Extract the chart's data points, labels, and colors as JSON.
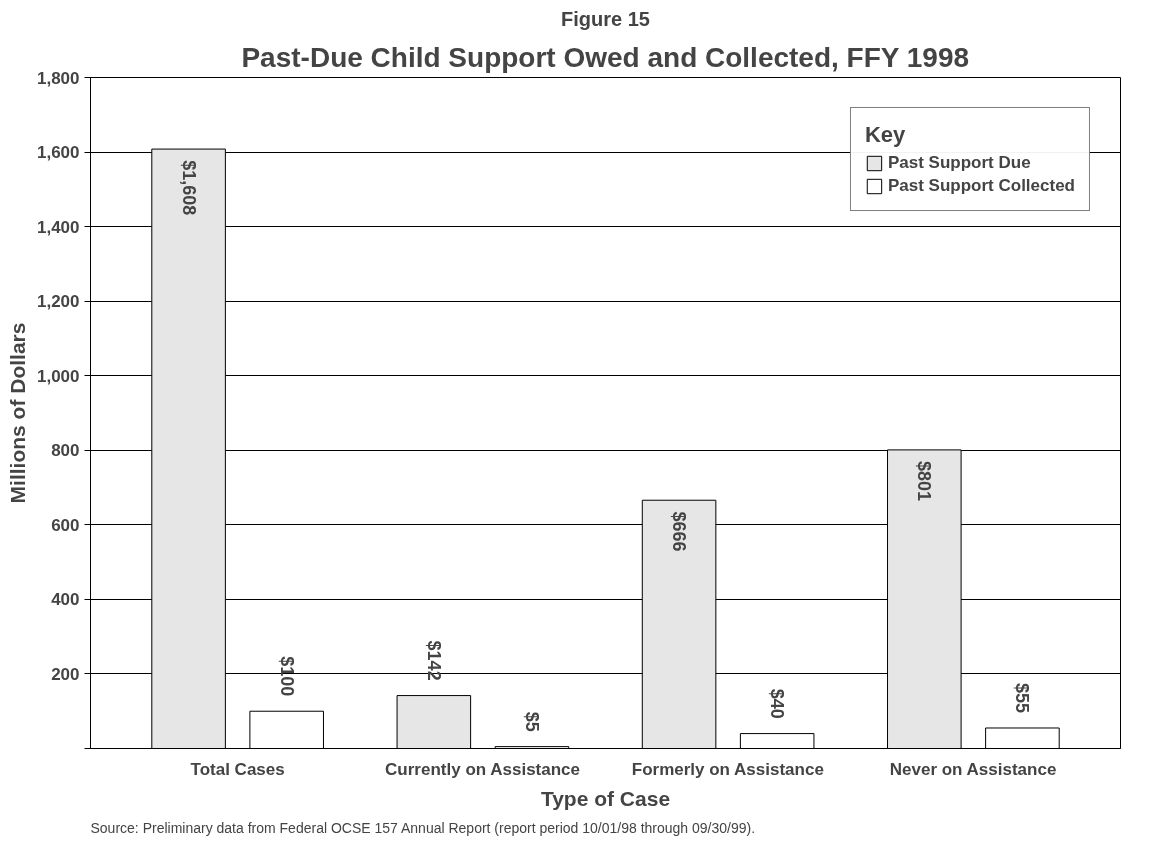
{
  "chart_data": {
    "type": "bar",
    "title": "Past-Due Child Support Owed and Collected, FFY 1998",
    "xlabel": "Type of Case",
    "ylabel": "Millions of Dollars",
    "legend_title": "Key",
    "annotations": [
      "Figure 15",
      "Source:  Preliminary data from Federal OCSE 157 Annual Report (report period 10/01/98 through 09/30/99)."
    ],
    "categories": [
      "Total Cases",
      "Currently on Assistance",
      "Formerly on Assistance",
      "Never on Assistance"
    ],
    "series": [
      {
        "name": "Past Support Due",
        "color": "#e6e6e6",
        "values": [
          1608,
          142,
          666,
          801
        ],
        "value_labels": [
          "$1,608",
          "$142",
          "$666",
          "$801"
        ]
      },
      {
        "name": "Past Support Collected",
        "color": "#ffffff",
        "values": [
          100,
          5,
          40,
          55
        ],
        "value_labels": [
          "$100",
          "$5",
          "$40",
          "$55"
        ]
      }
    ],
    "ylim": [
      0,
      1800
    ],
    "yticks": [
      {
        "value": 0,
        "label": null
      },
      200,
      400,
      600,
      800,
      {
        "value": 1000,
        "label": "1,000"
      },
      {
        "value": 1200,
        "label": "1,200"
      },
      {
        "value": 1400,
        "label": "1,400"
      },
      {
        "value": 1600,
        "label": "1,600"
      },
      {
        "value": 1800,
        "label": "1,800"
      }
    ],
    "grid": "y",
    "legend": "top right"
  }
}
